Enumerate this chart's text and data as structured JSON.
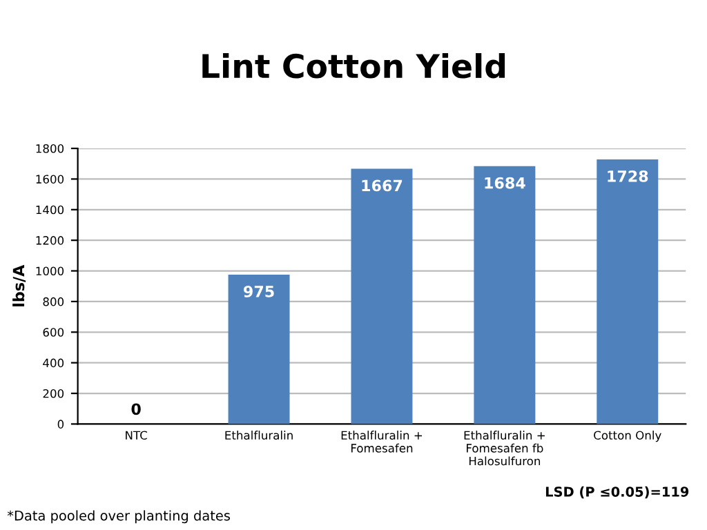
{
  "chart_data": {
    "type": "bar",
    "title": "Lint Cotton Yield",
    "ylabel": "lbs/A",
    "categories": [
      "NTC",
      "Ethalfluralin",
      "Ethalfluralin +\nFomesafen",
      "Ethalfluralin +\nFomesafen fb\nHalosulfuron",
      "Cotton Only"
    ],
    "values": [
      0,
      975,
      1667,
      1684,
      1728
    ],
    "color": "#4f81bd",
    "data_labels": true,
    "ylim": [
      0,
      1800
    ],
    "yticks": [
      0,
      200,
      400,
      600,
      800,
      1000,
      1200,
      1400,
      1600,
      1800
    ],
    "grid": "y",
    "annotations": [
      "LSD (P ≤0.05)=119",
      "*Data pooled over planting dates"
    ]
  }
}
